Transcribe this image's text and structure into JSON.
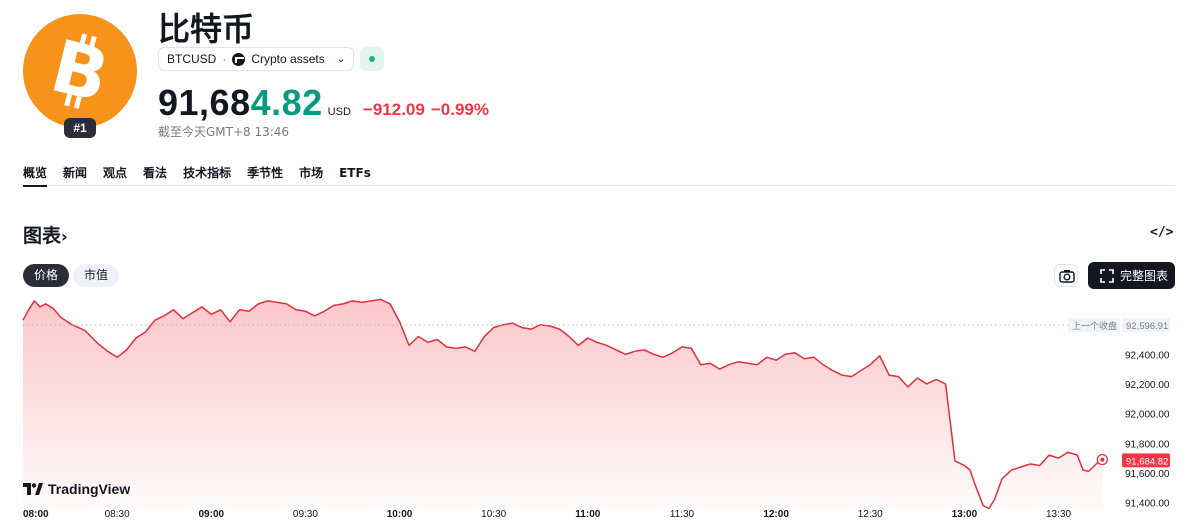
{
  "header": {
    "asset_name": "比特币",
    "rank": "#1",
    "symbol": "BTCUSD",
    "separator": "·",
    "category": "Crypto assets",
    "price_part_1": "91,68",
    "price_part_2": "4.82",
    "currency": "USD",
    "change_abs": "−912.09",
    "change_pct": "−0.99%",
    "timestamp": "截至今天GMT+8 13:46"
  },
  "colors": {
    "brand": "#f7931a",
    "up": "#089981",
    "down": "#f23645",
    "line": "#e0303e"
  },
  "tabs": [
    {
      "label": "概览",
      "active": true
    },
    {
      "label": "新闻"
    },
    {
      "label": "观点"
    },
    {
      "label": "看法"
    },
    {
      "label": "技术指标"
    },
    {
      "label": "季节性"
    },
    {
      "label": "市场"
    },
    {
      "label": "ETFs"
    }
  ],
  "chart_section": {
    "title": "图表",
    "title_arrow": "›",
    "embed_icon": "</>",
    "toggle_price": "价格",
    "toggle_mcap": "市值",
    "fullchart_label": "完整图表",
    "brand_label": "TradingView"
  },
  "chart_data": {
    "type": "area",
    "x_ticks": [
      "08:00",
      "08:30",
      "09:00",
      "09:30",
      "10:00",
      "10:30",
      "11:00",
      "11:30",
      "12:00",
      "12:30",
      "13:00",
      "13:30"
    ],
    "y_ticks": [
      "92,400.00",
      "92,200.00",
      "92,000.00",
      "91,800.00",
      "91,600.00",
      "91,400.00"
    ],
    "ylim": [
      91350,
      92800
    ],
    "prev_close": 92596.91,
    "prev_close_label": "上一个收盘",
    "prev_close_value": "92,596.91",
    "last_value": 91684.82,
    "last_value_label": "91,684.82",
    "series": [
      {
        "x_hours": [
          8.0,
          8.03,
          8.06,
          8.09,
          8.12,
          8.16,
          8.2,
          8.26,
          8.33,
          8.4,
          8.45,
          8.5,
          8.55,
          8.6,
          8.65,
          8.7,
          8.75,
          8.8,
          8.85,
          8.9,
          8.95,
          9.0,
          9.05,
          9.1,
          9.15,
          9.2,
          9.25,
          9.3,
          9.35,
          9.4,
          9.45,
          9.5,
          9.55,
          9.6,
          9.65,
          9.7,
          9.75,
          9.8,
          9.85,
          9.9,
          9.95,
          10.0,
          10.05,
          10.1,
          10.15,
          10.2,
          10.25,
          10.3,
          10.35,
          10.4,
          10.45,
          10.5,
          10.55,
          10.6,
          10.65,
          10.7,
          10.75,
          10.8,
          10.85,
          10.9,
          10.95,
          11.0,
          11.05,
          11.1,
          11.15,
          11.2,
          11.25,
          11.3,
          11.35,
          11.4,
          11.45,
          11.5,
          11.55,
          11.6,
          11.65,
          11.7,
          11.75,
          11.8,
          11.85,
          11.9,
          11.95,
          12.0,
          12.05,
          12.1,
          12.15,
          12.2,
          12.25,
          12.3,
          12.35,
          12.4,
          12.45,
          12.5,
          12.55,
          12.6,
          12.65,
          12.7,
          12.75,
          12.8,
          12.85,
          12.9,
          12.95,
          13.0,
          13.03,
          13.06,
          13.1,
          13.13,
          13.16,
          13.2,
          13.25,
          13.3,
          13.35,
          13.4,
          13.45,
          13.5,
          13.55,
          13.6,
          13.63,
          13.66,
          13.7,
          13.733
        ],
        "values": [
          92630,
          92700,
          92760,
          92720,
          92740,
          92710,
          92650,
          92600,
          92560,
          92470,
          92420,
          92380,
          92430,
          92510,
          92550,
          92630,
          92660,
          92700,
          92640,
          92680,
          92720,
          92670,
          92700,
          92620,
          92700,
          92690,
          92740,
          92760,
          92750,
          92740,
          92700,
          92690,
          92660,
          92690,
          92730,
          92740,
          92760,
          92750,
          92760,
          92770,
          92740,
          92620,
          92460,
          92520,
          92480,
          92500,
          92450,
          92440,
          92450,
          92420,
          92520,
          92580,
          92600,
          92610,
          92580,
          92570,
          92600,
          92590,
          92570,
          92520,
          92460,
          92510,
          92480,
          92460,
          92430,
          92400,
          92420,
          92430,
          92400,
          92380,
          92410,
          92450,
          92440,
          92330,
          92340,
          92300,
          92330,
          92350,
          92340,
          92330,
          92380,
          92360,
          92400,
          92410,
          92370,
          92380,
          92330,
          92290,
          92260,
          92250,
          92290,
          92330,
          92390,
          92260,
          92250,
          92180,
          92240,
          92200,
          92230,
          92200,
          91680,
          91650,
          91620,
          91510,
          91380,
          91360,
          91420,
          91560,
          91620,
          91640,
          91660,
          91650,
          91720,
          91700,
          91740,
          91720,
          91620,
          91610,
          91660,
          91690
        ]
      }
    ]
  }
}
